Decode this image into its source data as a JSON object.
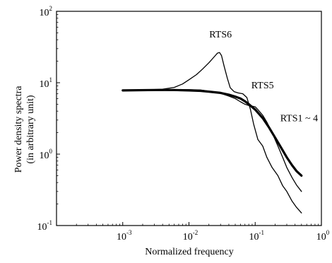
{
  "chart_data": {
    "type": "line",
    "xlabel": "Normalized frequency",
    "ylabel": [
      "Power density spectra",
      "(in arbitrary unit)"
    ],
    "xscale": "log",
    "yscale": "log",
    "xlim": [
      0.0001,
      1
    ],
    "ylim": [
      0.1,
      100
    ],
    "grid": false,
    "x_ticks": [
      {
        "base": "10",
        "exp": "-3",
        "value": 0.001
      },
      {
        "base": "10",
        "exp": "-2",
        "value": 0.01
      },
      {
        "base": "10",
        "exp": "-1",
        "value": 0.1
      },
      {
        "base": "10",
        "exp": "0",
        "value": 1
      }
    ],
    "y_ticks": [
      {
        "base": "10",
        "exp": "-1",
        "value": 0.1
      },
      {
        "base": "10",
        "exp": "0",
        "value": 1
      },
      {
        "base": "10",
        "exp": "1",
        "value": 10
      },
      {
        "base": "10",
        "exp": "2",
        "value": 100
      }
    ],
    "series": [
      {
        "name": "RTS6",
        "width": 1.3,
        "points": [
          [
            0.001,
            7.8
          ],
          [
            0.002,
            7.9
          ],
          [
            0.004,
            8.1
          ],
          [
            0.006,
            8.6
          ],
          [
            0.008,
            9.6
          ],
          [
            0.01,
            11
          ],
          [
            0.013,
            13
          ],
          [
            0.016,
            15.5
          ],
          [
            0.02,
            19
          ],
          [
            0.024,
            23
          ],
          [
            0.027,
            26
          ],
          [
            0.029,
            26.5
          ],
          [
            0.031,
            24
          ],
          [
            0.034,
            17
          ],
          [
            0.038,
            11.5
          ],
          [
            0.042,
            8.5
          ],
          [
            0.048,
            7.5
          ],
          [
            0.055,
            7.2
          ],
          [
            0.065,
            7.0
          ],
          [
            0.075,
            6.2
          ],
          [
            0.085,
            4.2
          ],
          [
            0.095,
            2.6
          ],
          [
            0.11,
            1.6
          ],
          [
            0.13,
            1.3
          ],
          [
            0.15,
            0.9
          ],
          [
            0.18,
            0.65
          ],
          [
            0.22,
            0.5
          ],
          [
            0.26,
            0.36
          ],
          [
            0.3,
            0.3
          ],
          [
            0.36,
            0.22
          ],
          [
            0.42,
            0.18
          ],
          [
            0.5,
            0.15
          ]
        ]
      },
      {
        "name": "RTS5",
        "width": 1.3,
        "points": [
          [
            0.001,
            7.8
          ],
          [
            0.003,
            7.9
          ],
          [
            0.006,
            8.0
          ],
          [
            0.01,
            8.0
          ],
          [
            0.015,
            7.9
          ],
          [
            0.02,
            7.6
          ],
          [
            0.03,
            7.1
          ],
          [
            0.04,
            6.5
          ],
          [
            0.05,
            6.0
          ],
          [
            0.06,
            5.4
          ],
          [
            0.07,
            5.0
          ],
          [
            0.08,
            4.8
          ],
          [
            0.09,
            4.7
          ],
          [
            0.1,
            4.6
          ],
          [
            0.11,
            4.2
          ],
          [
            0.13,
            3.5
          ],
          [
            0.15,
            2.8
          ],
          [
            0.18,
            2.0
          ],
          [
            0.22,
            1.3
          ],
          [
            0.26,
            0.9
          ],
          [
            0.3,
            0.65
          ],
          [
            0.36,
            0.47
          ],
          [
            0.42,
            0.37
          ],
          [
            0.5,
            0.3
          ]
        ]
      },
      {
        "name": "RTS1 ~ 4",
        "width": 3.2,
        "points": [
          [
            0.001,
            7.8
          ],
          [
            0.003,
            7.9
          ],
          [
            0.006,
            7.9
          ],
          [
            0.01,
            7.8
          ],
          [
            0.015,
            7.7
          ],
          [
            0.02,
            7.5
          ],
          [
            0.03,
            7.2
          ],
          [
            0.04,
            6.8
          ],
          [
            0.05,
            6.4
          ],
          [
            0.06,
            6.0
          ],
          [
            0.07,
            5.5
          ],
          [
            0.08,
            5.0
          ],
          [
            0.1,
            4.2
          ],
          [
            0.13,
            3.2
          ],
          [
            0.16,
            2.4
          ],
          [
            0.2,
            1.7
          ],
          [
            0.25,
            1.2
          ],
          [
            0.3,
            0.9
          ],
          [
            0.36,
            0.7
          ],
          [
            0.42,
            0.58
          ],
          [
            0.5,
            0.5
          ]
        ]
      }
    ],
    "annotations": [
      {
        "text": "RTS6",
        "x": 0.03,
        "y": 43,
        "anchor": "middle"
      },
      {
        "text": "RTS5",
        "x": 0.0875,
        "y": 8.3,
        "anchor": "start"
      },
      {
        "text": "RTS1 ~ 4",
        "x": 0.239,
        "y": 2.9,
        "anchor": "start"
      }
    ]
  }
}
